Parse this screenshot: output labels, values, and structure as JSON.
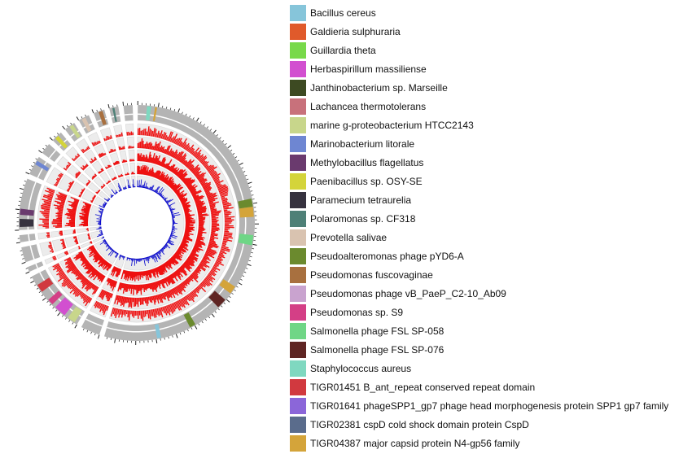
{
  "legend": {
    "items": [
      {
        "label": "Bacillus cereus",
        "color": "#86c5da"
      },
      {
        "label": "Galdieria sulphuraria",
        "color": "#e05a2b"
      },
      {
        "label": "Guillardia theta",
        "color": "#78d94a"
      },
      {
        "label": "Herbaspirillum massiliense",
        "color": "#d24fd0"
      },
      {
        "label": "Janthinobacterium sp. Marseille",
        "color": "#3d4a22"
      },
      {
        "label": "Lachancea thermotolerans",
        "color": "#c8717b"
      },
      {
        "label": "marine g-proteobacterium HTCC2143",
        "color": "#c8d68b"
      },
      {
        "label": "Marinobacterium litorale",
        "color": "#6e86d2"
      },
      {
        "label": "Methylobacillus flagellatus",
        "color": "#6a3a6e"
      },
      {
        "label": "Paenibacillus sp. OSY-SE",
        "color": "#d4d43a"
      },
      {
        "label": "Paramecium tetraurelia",
        "color": "#36323f"
      },
      {
        "label": "Polaromonas sp. CF318",
        "color": "#4e8077"
      },
      {
        "label": "Prevotella salivae",
        "color": "#d9c3b0"
      },
      {
        "label": "Pseudoalteromonas phage pYD6-A",
        "color": "#6b8a2e"
      },
      {
        "label": "Pseudomonas fuscovaginae",
        "color": "#a8703f"
      },
      {
        "label": "Pseudomonas phage vB_PaeP_C2-10_Ab09",
        "color": "#c9a3cf"
      },
      {
        "label": "Pseudomonas sp. S9",
        "color": "#d43f86"
      },
      {
        "label": "Salmonella phage FSL SP-058",
        "color": "#6fd686"
      },
      {
        "label": "Salmonella phage FSL SP-076",
        "color": "#5f2523"
      },
      {
        "label": "Staphylococcus aureus",
        "color": "#7fd8c0"
      },
      {
        "label": "TIGR01451 B_ant_repeat conserved repeat domain",
        "color": "#d1393f"
      },
      {
        "label": "TIGR01641 phageSPP1_gp7 phage head morphogenesis protein SPP1 gp7 family",
        "color": "#8b66d9"
      },
      {
        "label": "TIGR02381 cspD cold shock domain protein CspD",
        "color": "#5a6c8c"
      },
      {
        "label": "TIGR04387 major capsid protein N4-gp56 family",
        "color": "#d4a43a"
      }
    ]
  },
  "circos": {
    "track_colors": {
      "outer_ring": "#b4b4b4",
      "histogram": "#ee1111",
      "inner_lines": "#0000cc",
      "rings": "#d7d7d7"
    }
  }
}
